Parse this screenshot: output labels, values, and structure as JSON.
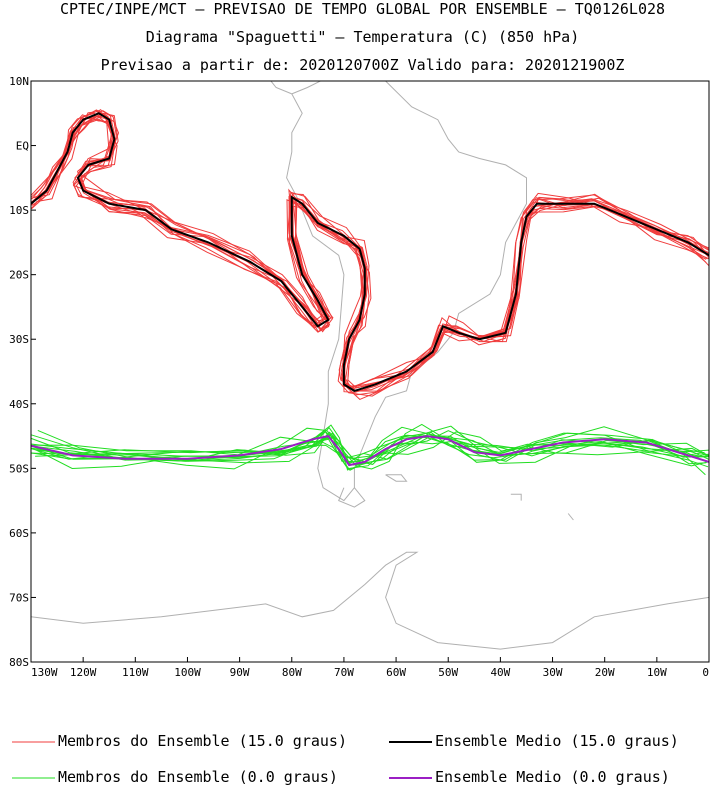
{
  "header": {
    "line1": "CPTEC/INPE/MCT – PREVISAO DE TEMPO GLOBAL POR ENSEMBLE – TQ0126L028",
    "line2": "Diagrama \"Spaguetti\" – Temperatura (C) (850 hPa)",
    "line3": "Previsao a partir de: 2020120700Z  Valido para: 2020121900Z"
  },
  "chart_data": {
    "type": "line",
    "title": "Diagrama \"Spaguetti\" – Temperatura (C) (850 hPa)",
    "xlim": [
      -130,
      0
    ],
    "ylim": [
      -80,
      10
    ],
    "x_ticks": [
      {
        "value": -130,
        "label": "130W"
      },
      {
        "value": -120,
        "label": "120W"
      },
      {
        "value": -110,
        "label": "110W"
      },
      {
        "value": -100,
        "label": "100W"
      },
      {
        "value": -90,
        "label": "90W"
      },
      {
        "value": -80,
        "label": "80W"
      },
      {
        "value": -70,
        "label": "70W"
      },
      {
        "value": -60,
        "label": "60W"
      },
      {
        "value": -50,
        "label": "50W"
      },
      {
        "value": -40,
        "label": "40W"
      },
      {
        "value": -30,
        "label": "30W"
      },
      {
        "value": -20,
        "label": "20W"
      },
      {
        "value": -10,
        "label": "10W"
      },
      {
        "value": 0,
        "label": "0"
      }
    ],
    "y_ticks": [
      {
        "value": 10,
        "label": "10N"
      },
      {
        "value": 0,
        "label": "EQ"
      },
      {
        "value": -10,
        "label": "10S"
      },
      {
        "value": -20,
        "label": "20S"
      },
      {
        "value": -30,
        "label": "30S"
      },
      {
        "value": -40,
        "label": "40S"
      },
      {
        "value": -50,
        "label": "50S"
      },
      {
        "value": -60,
        "label": "60S"
      },
      {
        "value": -70,
        "label": "70S"
      },
      {
        "value": -80,
        "label": "80S"
      }
    ],
    "colors": {
      "members15": "#f03c3c",
      "mean15": "#000000",
      "members0": "#22dd22",
      "mean0": "#9b1fc4",
      "coast": "#b0b0b0"
    },
    "series": [
      {
        "name": "Ensemble Medio (15.0 graus)",
        "kind": "mean15",
        "points": [
          [
            -130,
            -9
          ],
          [
            -127,
            -7
          ],
          [
            -125,
            -4
          ],
          [
            -123,
            -1
          ],
          [
            -122,
            2
          ],
          [
            -120,
            4
          ],
          [
            -117,
            5
          ],
          [
            -115,
            4
          ],
          [
            -114,
            1
          ],
          [
            -115,
            -2
          ],
          [
            -119,
            -3
          ],
          [
            -121,
            -5
          ],
          [
            -120,
            -7
          ],
          [
            -115,
            -9
          ],
          [
            -108,
            -10
          ],
          [
            -103,
            -13
          ],
          [
            -96,
            -15
          ],
          [
            -88,
            -18
          ],
          [
            -82,
            -21
          ],
          [
            -78,
            -25
          ],
          [
            -75,
            -28
          ],
          [
            -73,
            -27
          ],
          [
            -75,
            -24
          ],
          [
            -78,
            -20
          ],
          [
            -80,
            -14
          ],
          [
            -80,
            -8
          ],
          [
            -78,
            -9
          ],
          [
            -75,
            -12
          ],
          [
            -70,
            -14
          ],
          [
            -67,
            -16
          ],
          [
            -66,
            -19
          ],
          [
            -66,
            -23
          ],
          [
            -67,
            -27
          ],
          [
            -69,
            -30
          ],
          [
            -70,
            -34
          ],
          [
            -70,
            -37
          ],
          [
            -68,
            -38
          ],
          [
            -64,
            -37
          ],
          [
            -58,
            -35
          ],
          [
            -53,
            -32
          ],
          [
            -51,
            -28
          ],
          [
            -48,
            -29
          ],
          [
            -44,
            -30
          ],
          [
            -39,
            -29
          ],
          [
            -37,
            -23
          ],
          [
            -36,
            -15
          ],
          [
            -35,
            -11
          ],
          [
            -33,
            -9
          ],
          [
            -28,
            -9
          ],
          [
            -22,
            -9
          ],
          [
            -16,
            -11
          ],
          [
            -10,
            -13
          ],
          [
            -4,
            -15
          ],
          [
            0,
            -17
          ]
        ]
      },
      {
        "name": "Ensemble Medio (0.0 graus)",
        "kind": "mean0",
        "points": [
          [
            -130,
            -46.5
          ],
          [
            -122,
            -48
          ],
          [
            -112,
            -48.5
          ],
          [
            -100,
            -48.5
          ],
          [
            -90,
            -48
          ],
          [
            -82,
            -47
          ],
          [
            -76,
            -45.5
          ],
          [
            -73,
            -45
          ],
          [
            -71,
            -47
          ],
          [
            -69,
            -49.5
          ],
          [
            -66,
            -49
          ],
          [
            -62,
            -47
          ],
          [
            -58,
            -45.5
          ],
          [
            -54,
            -45
          ],
          [
            -50,
            -45.5
          ],
          [
            -45,
            -47.5
          ],
          [
            -40,
            -48
          ],
          [
            -34,
            -47
          ],
          [
            -28,
            -46
          ],
          [
            -20,
            -45.5
          ],
          [
            -12,
            -46
          ],
          [
            -4,
            -48
          ],
          [
            0,
            -49
          ]
        ]
      }
    ],
    "legend": [
      {
        "label": "Membros do Ensemble (15.0 graus)",
        "color_key": "members15"
      },
      {
        "label": "Ensemble Medio (15.0 graus)",
        "color_key": "mean15"
      },
      {
        "label": "Membros do Ensemble (0.0 graus)",
        "color_key": "members0"
      },
      {
        "label": "Ensemble Medio (0.0 graus)",
        "color_key": "mean0"
      }
    ],
    "coast_polylines": [
      [
        [
          -80,
          8
        ],
        [
          -77,
          9
        ],
        [
          -72,
          11
        ],
        [
          -67,
          11
        ],
        [
          -62,
          10
        ],
        [
          -57,
          6
        ],
        [
          -52,
          4
        ],
        [
          -50,
          1
        ],
        [
          -48,
          -1
        ],
        [
          -44,
          -2
        ],
        [
          -39,
          -3
        ],
        [
          -35,
          -5
        ],
        [
          -35,
          -9
        ],
        [
          -37,
          -12
        ],
        [
          -39,
          -15
        ],
        [
          -40,
          -20
        ],
        [
          -42,
          -23
        ],
        [
          -48,
          -26
        ],
        [
          -49,
          -29
        ],
        [
          -52,
          -32
        ],
        [
          -55,
          -34
        ],
        [
          -57,
          -35
        ],
        [
          -58,
          -38
        ],
        [
          -62,
          -39
        ],
        [
          -64,
          -42
        ],
        [
          -66,
          -46
        ],
        [
          -68,
          -50
        ],
        [
          -68,
          -53
        ],
        [
          -70,
          -55
        ],
        [
          -74,
          -53
        ],
        [
          -75,
          -50
        ],
        [
          -74,
          -45
        ],
        [
          -73,
          -40
        ],
        [
          -73,
          -35
        ],
        [
          -71,
          -30
        ],
        [
          -70,
          -20
        ],
        [
          -71,
          -17
        ],
        [
          -76,
          -14
        ],
        [
          -79,
          -8
        ],
        [
          -81,
          -5
        ],
        [
          -80,
          -1
        ],
        [
          -80,
          2
        ],
        [
          -78,
          5
        ],
        [
          -80,
          8
        ]
      ],
      [
        [
          -105,
          19
        ],
        [
          -100,
          17
        ],
        [
          -95,
          16
        ],
        [
          -92,
          15
        ],
        [
          -88,
          13
        ],
        [
          -85,
          11
        ],
        [
          -83,
          9
        ],
        [
          -80,
          8
        ]
      ],
      [
        [
          -68,
          -53
        ],
        [
          -66,
          -55
        ],
        [
          -68,
          -56
        ],
        [
          -71,
          -55
        ],
        [
          -70,
          -53
        ]
      ],
      [
        [
          -62,
          -51
        ],
        [
          -59,
          -51
        ],
        [
          -58,
          -52
        ],
        [
          -60,
          -52
        ],
        [
          -62,
          -51
        ]
      ],
      [
        [
          -130,
          -73
        ],
        [
          -120,
          -74
        ],
        [
          -105,
          -73
        ],
        [
          -95,
          -72
        ],
        [
          -85,
          -71
        ],
        [
          -78,
          -73
        ],
        [
          -72,
          -72
        ],
        [
          -66,
          -68
        ],
        [
          -62,
          -65
        ],
        [
          -58,
          -63
        ],
        [
          -56,
          -63
        ],
        [
          -60,
          -65
        ],
        [
          -62,
          -70
        ],
        [
          -60,
          -74
        ],
        [
          -52,
          -77
        ],
        [
          -40,
          -78
        ],
        [
          -30,
          -77
        ],
        [
          -22,
          -73
        ],
        [
          -15,
          -72
        ],
        [
          -8,
          -71
        ],
        [
          0,
          -70
        ]
      ],
      [
        [
          -38,
          -54
        ],
        [
          -36,
          -54
        ],
        [
          -36,
          -55
        ]
      ],
      [
        [
          -27,
          -57
        ],
        [
          -26,
          -58
        ]
      ]
    ]
  },
  "legend": {
    "members15": "Membros do Ensemble (15.0 graus)",
    "mean15": "Ensemble Medio (15.0 graus)",
    "members0": "Membros do Ensemble (0.0 graus)",
    "mean0": "Ensemble Medio (0.0 graus)"
  }
}
